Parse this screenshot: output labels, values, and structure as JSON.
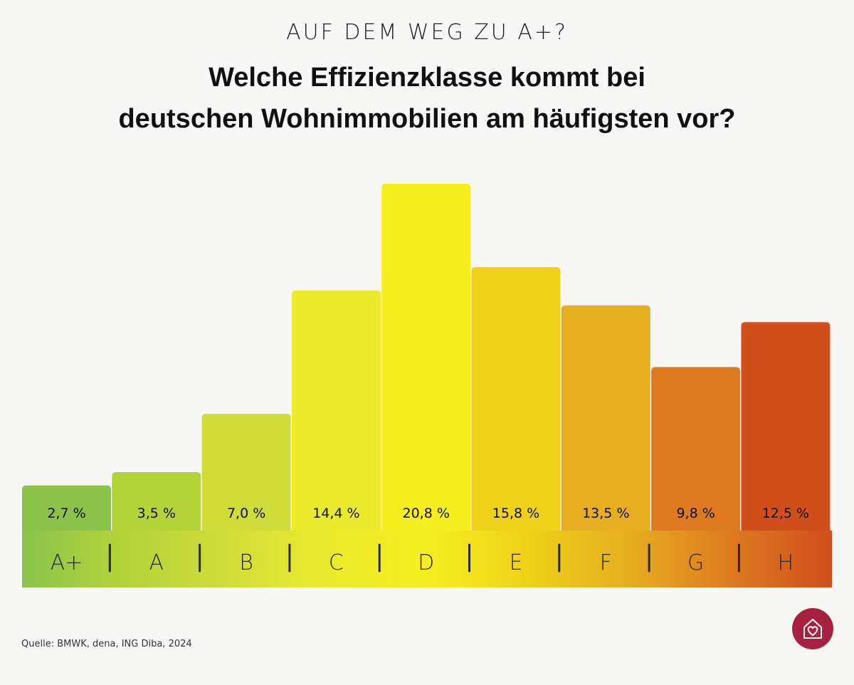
{
  "header": {
    "kicker": "AUF DEM WEG ZU A+?",
    "title_line1": "Welche Effizienzklasse kommt bei",
    "title_line2": "deutschen Wohnimmobilien am häufigsten vor?"
  },
  "chart_data": {
    "type": "bar",
    "categories": [
      "A+",
      "A",
      "B",
      "C",
      "D",
      "E",
      "F",
      "G",
      "H"
    ],
    "values": [
      2.7,
      3.5,
      7.0,
      14.4,
      20.8,
      15.8,
      13.5,
      9.8,
      12.5
    ],
    "value_labels": [
      "2,7 %",
      "3,5 %",
      "7,0 %",
      "14,4 %",
      "20,8 %",
      "15,8 %",
      "13,5 %",
      "9,8 %",
      "12,5 %"
    ],
    "colors": [
      "#8bc34a",
      "#b4d339",
      "#cfdc3a",
      "#e9eb2c",
      "#f6ee1f",
      "#eed118",
      "#e5ad1f",
      "#dd7a1f",
      "#d14f1b"
    ],
    "title": "Welche Effizienzklasse kommt bei deutschen Wohnimmobilien am häufigsten vor?",
    "xlabel": "",
    "ylabel": "",
    "grid": false,
    "legend": "none"
  },
  "footer": {
    "source": "Quelle: BMWK, dena, ING Diba, 2024"
  },
  "brand": {
    "logo_icon": "house-heart-icon",
    "color": "#a8213f"
  }
}
